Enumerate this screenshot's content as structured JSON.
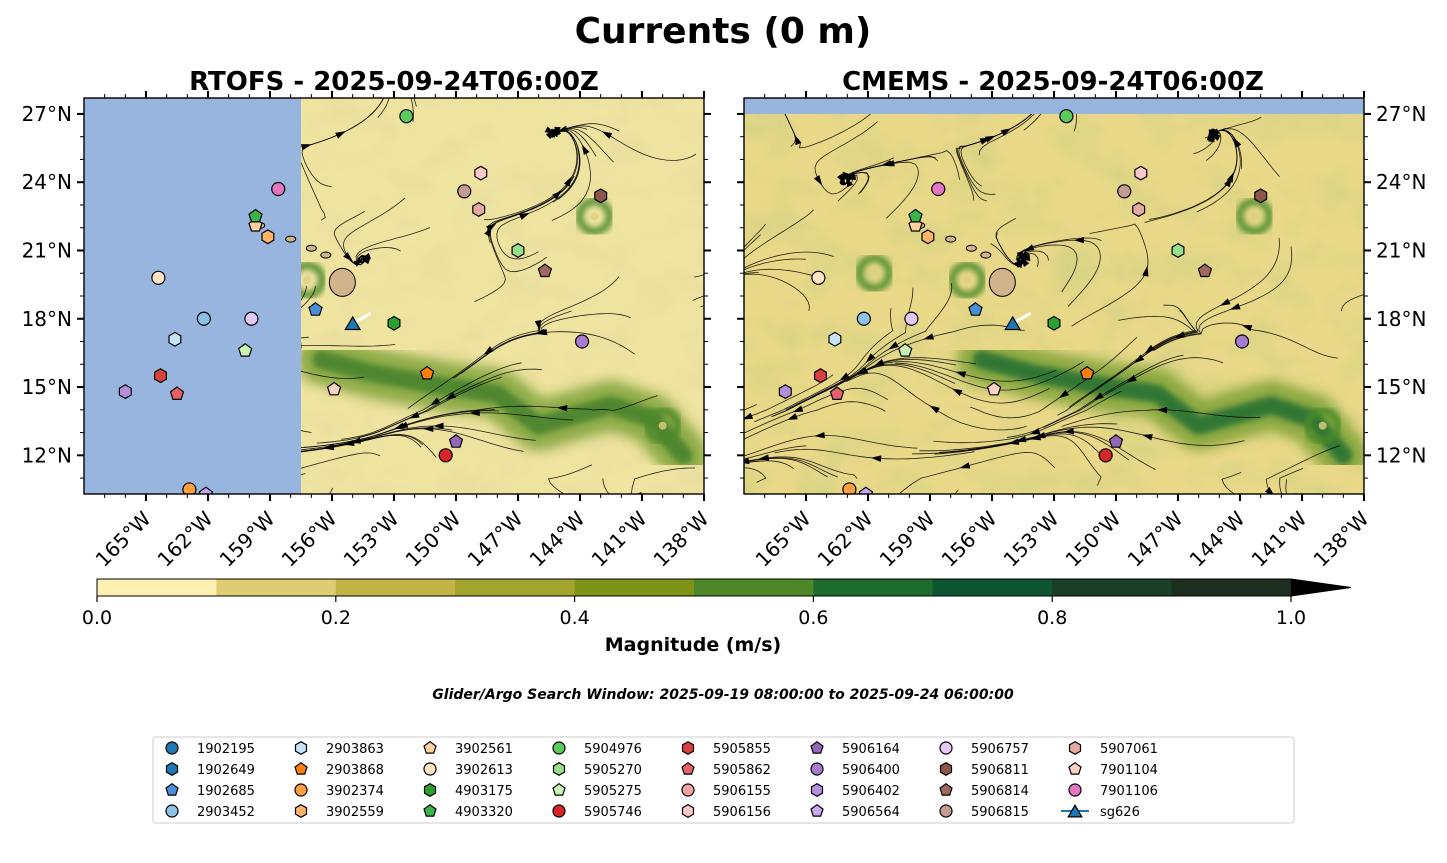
{
  "chart_data": {
    "type": "map-contour",
    "title": "Currents (0 m)",
    "panels": [
      {
        "title": "RTOFS - 2025-09-24T06:00Z",
        "model": "RTOFS",
        "missing_west_of_lon": -157.5
      },
      {
        "title": "CMEMS - 2025-09-24T06:00Z",
        "model": "CMEMS",
        "missing_north_of_lat": 27.0
      }
    ],
    "lon_range": [
      -168,
      -138
    ],
    "lat_range": [
      10.3,
      27.7
    ],
    "lon_ticks": [
      -165,
      -162,
      -159,
      -156,
      -153,
      -150,
      -147,
      -144,
      -141,
      -138
    ],
    "lon_tick_labels": [
      "165°W",
      "162°W",
      "159°W",
      "156°W",
      "153°W",
      "150°W",
      "147°W",
      "144°W",
      "141°W",
      "138°W"
    ],
    "lat_ticks": [
      12,
      15,
      18,
      21,
      24,
      27
    ],
    "lat_tick_labels": [
      "12°N",
      "15°N",
      "18°N",
      "21°N",
      "24°N",
      "27°N"
    ],
    "colorbar": {
      "label": "Magnitude (m/s)",
      "levels": [
        0.0,
        0.1,
        0.2,
        0.3,
        0.4,
        0.5,
        0.6,
        0.7,
        0.8,
        0.9,
        1.0
      ],
      "tick_values": [
        0.0,
        0.2,
        0.4,
        0.6,
        0.8,
        1.0
      ],
      "tick_labels": [
        "0.0",
        "0.2",
        "0.4",
        "0.6",
        "0.8",
        "1.0"
      ],
      "colors": [
        "#fbf0b2",
        "#e0cc72",
        "#c3b448",
        "#a3a42e",
        "#7e9418",
        "#4e8728",
        "#1e6b2e",
        "#0c5530",
        "#1a3f27",
        "#1c2e1e"
      ],
      "extend": "max"
    },
    "search_window": "Glider/Argo Search Window: 2025-09-19 08:00:00 to 2025-09-24 06:00:00",
    "jet": {
      "lon": [
        -156.5,
        -154,
        -151,
        -148,
        -146,
        -144.5,
        -142.5,
        -140.5,
        -139
      ],
      "lat": [
        16.2,
        15.6,
        15.1,
        14.7,
        13.3,
        13.7,
        14.2,
        13.6,
        12.0
      ]
    },
    "eddies": [
      {
        "lon": -157.2,
        "lat": 19.7
      },
      {
        "lon": -143.3,
        "lat": 22.5
      },
      {
        "lon": -161.7,
        "lat": 20.0
      },
      {
        "lon": -140.0,
        "lat": 13.3
      }
    ],
    "islands": [
      {
        "lon": -155.5,
        "lat": 19.6
      },
      {
        "lon": -156.3,
        "lat": 20.8
      },
      {
        "lon": -157.0,
        "lat": 21.1
      },
      {
        "lon": -158.0,
        "lat": 21.5
      },
      {
        "lon": -159.5,
        "lat": 22.1
      }
    ],
    "floats": [
      {
        "id": "1902195",
        "marker": "circle",
        "color": "#1f77b4",
        "lon": null,
        "lat": null
      },
      {
        "id": "1902649",
        "marker": "hexagon",
        "color": "#1f77b4",
        "lon": null,
        "lat": null
      },
      {
        "id": "1902685",
        "marker": "pentagon",
        "color": "#4a90d9",
        "lon": -156.8,
        "lat": 18.4
      },
      {
        "id": "2903452",
        "marker": "circle",
        "color": "#8ec1e6",
        "lon": -162.2,
        "lat": 18.0
      },
      {
        "id": "2903863",
        "marker": "hexagon",
        "color": "#c7e4f6",
        "lon": -163.6,
        "lat": 17.1
      },
      {
        "id": "2903868",
        "marker": "pentagon",
        "color": "#ff7f0e",
        "lon": -151.4,
        "lat": 15.6
      },
      {
        "id": "3902374",
        "marker": "circle",
        "color": "#ff9f40",
        "lon": -162.9,
        "lat": 10.5
      },
      {
        "id": "3902559",
        "marker": "hexagon",
        "color": "#ffb366",
        "lon": -159.1,
        "lat": 21.6
      },
      {
        "id": "3902561",
        "marker": "pentagon",
        "color": "#ffd0a0",
        "lon": -159.7,
        "lat": 22.1
      },
      {
        "id": "3902613",
        "marker": "circle",
        "color": "#ffe3c4",
        "lon": -164.4,
        "lat": 19.8
      },
      {
        "id": "4903175",
        "marker": "hexagon",
        "color": "#2ca02c",
        "lon": -153.0,
        "lat": 17.8
      },
      {
        "id": "4903320",
        "marker": "pentagon",
        "color": "#3bb54a",
        "lon": -159.7,
        "lat": 22.5
      },
      {
        "id": "5904976",
        "marker": "circle",
        "color": "#5cc95c",
        "lon": -152.4,
        "lat": 26.9
      },
      {
        "id": "5905270",
        "marker": "hexagon",
        "color": "#98df8a",
        "lon": -147.0,
        "lat": 21.0
      },
      {
        "id": "5905275",
        "marker": "pentagon",
        "color": "#c8f2b4",
        "lon": -160.2,
        "lat": 16.6
      },
      {
        "id": "5905746",
        "marker": "circle",
        "color": "#d62728",
        "lon": -150.5,
        "lat": 12.0
      },
      {
        "id": "5905855",
        "marker": "hexagon",
        "color": "#d94040",
        "lon": -164.3,
        "lat": 15.5
      },
      {
        "id": "5905862",
        "marker": "pentagon",
        "color": "#e8606a",
        "lon": -163.5,
        "lat": 14.7
      },
      {
        "id": "5906155",
        "marker": "circle",
        "color": "#f4a3a3",
        "lon": null,
        "lat": null
      },
      {
        "id": "5906156",
        "marker": "hexagon",
        "color": "#ffc8c8",
        "lon": -148.8,
        "lat": 24.4
      },
      {
        "id": "5906164",
        "marker": "pentagon",
        "color": "#9467bd",
        "lon": -150.0,
        "lat": 12.6
      },
      {
        "id": "5906400",
        "marker": "circle",
        "color": "#a77bd0",
        "lon": -143.9,
        "lat": 17.0
      },
      {
        "id": "5906402",
        "marker": "hexagon",
        "color": "#b490dc",
        "lon": -166.0,
        "lat": 14.8
      },
      {
        "id": "5906564",
        "marker": "pentagon",
        "color": "#c8a8ee",
        "lon": -162.1,
        "lat": 10.3
      },
      {
        "id": "5906757",
        "marker": "circle",
        "color": "#e4c8f8",
        "lon": -159.9,
        "lat": 18.0
      },
      {
        "id": "5906811",
        "marker": "hexagon",
        "color": "#8c564b",
        "lon": -143.0,
        "lat": 23.4
      },
      {
        "id": "5906814",
        "marker": "pentagon",
        "color": "#a06a5e",
        "lon": -145.7,
        "lat": 20.1
      },
      {
        "id": "5906815",
        "marker": "circle",
        "color": "#c49c94",
        "lon": -149.6,
        "lat": 23.6
      },
      {
        "id": "5907061",
        "marker": "hexagon",
        "color": "#e7aaa0",
        "lon": -148.9,
        "lat": 22.8
      },
      {
        "id": "7901104",
        "marker": "pentagon",
        "color": "#fcd2c4",
        "lon": -155.9,
        "lat": 14.9
      },
      {
        "id": "7901106",
        "marker": "circle",
        "color": "#e377c2",
        "lon": -158.6,
        "lat": 23.7
      },
      {
        "id": "sg626",
        "marker": "triangle",
        "color": "#1f77b4",
        "lon": -155.0,
        "lat": 17.8,
        "line": true
      }
    ]
  }
}
